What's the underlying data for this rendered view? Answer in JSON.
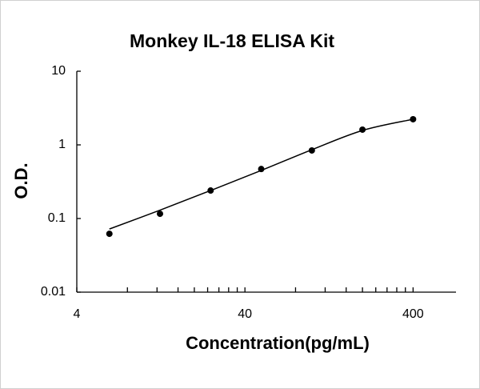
{
  "chart_data": {
    "type": "scatter",
    "title": "Monkey IL-18 ELISA Kit",
    "x_label": "Concentration(pg/mL)",
    "y_label": "O.D.",
    "x": [
      6.25,
      12.5,
      25,
      50,
      100,
      200,
      400
    ],
    "values": [
      0.062,
      0.116,
      0.24,
      0.47,
      0.84,
      1.61,
      2.23
    ],
    "color": "#000000",
    "fit": {
      "x": [
        6.25,
        12.5,
        25,
        50,
        100,
        200,
        400
      ],
      "values": [
        0.072,
        0.13,
        0.24,
        0.45,
        0.86,
        1.57,
        2.23
      ],
      "color": "#000000"
    },
    "xlim": [
      4,
      720
    ],
    "ylim": [
      0.01,
      10
    ],
    "xticks": [
      4,
      40,
      400
    ],
    "yticks": [
      0.01,
      0.1,
      1,
      10
    ],
    "xscale": "log",
    "yscale": "log",
    "grid": false
  }
}
